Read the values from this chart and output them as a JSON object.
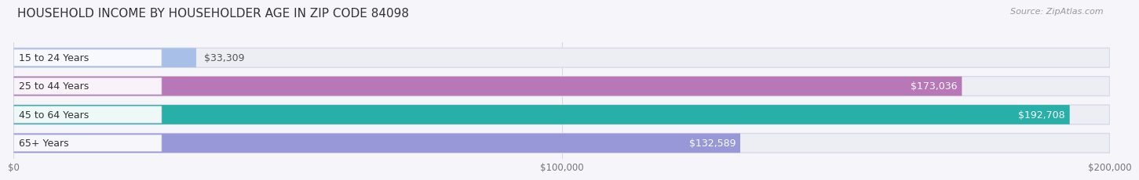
{
  "title": "HOUSEHOLD INCOME BY HOUSEHOLDER AGE IN ZIP CODE 84098",
  "source": "Source: ZipAtlas.com",
  "categories": [
    "15 to 24 Years",
    "25 to 44 Years",
    "45 to 64 Years",
    "65+ Years"
  ],
  "values": [
    33309,
    173036,
    192708,
    132589
  ],
  "bar_colors": [
    "#a8c0e8",
    "#b878b8",
    "#28b0a8",
    "#9898d8"
  ],
  "bar_bg_color": "#ededf4",
  "bar_border_color": "#d8d8e8",
  "xlim": [
    0,
    200000
  ],
  "xticks": [
    0,
    100000,
    200000
  ],
  "xtick_labels": [
    "$0",
    "$100,000",
    "$200,000"
  ],
  "value_labels": [
    "$33,309",
    "$173,036",
    "$192,708",
    "$132,589"
  ],
  "background_color": "#f5f5fa",
  "title_fontsize": 11,
  "source_fontsize": 8,
  "label_fontsize": 9,
  "value_fontsize": 9,
  "bar_height": 0.65
}
